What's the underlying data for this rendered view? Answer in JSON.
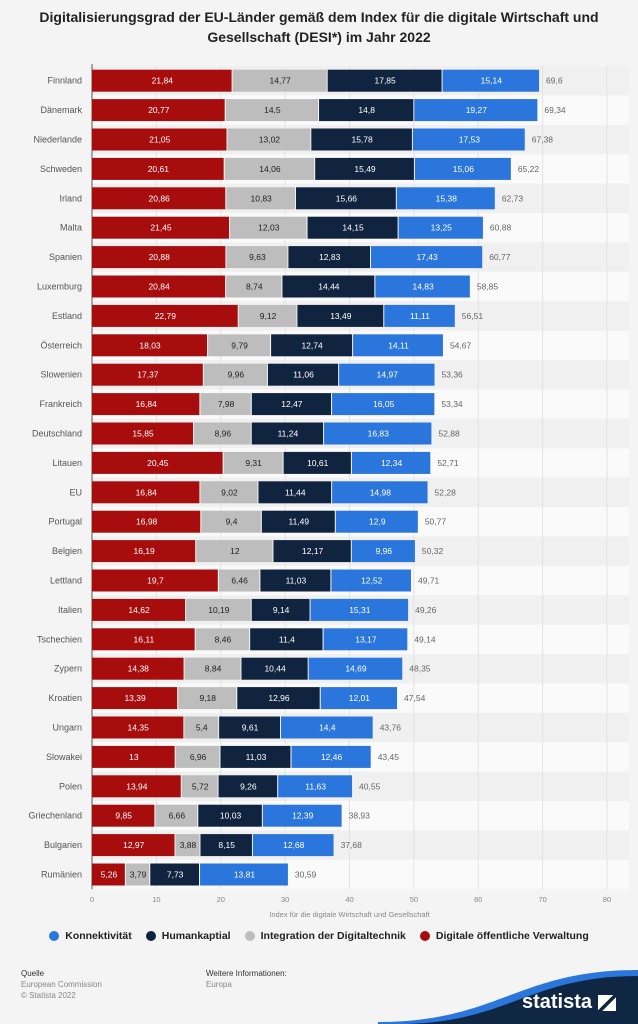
{
  "chart_data": {
    "type": "bar",
    "orientation": "horizontal",
    "stacked": true,
    "title": "Digitalisierungsgrad der EU-Länder gemäß dem Index für die digitale Wirtschaft und Gesellschaft (DESI*) im Jahr 2022",
    "xlabel": "Index für die digitale Wirtschaft und Gesellschaft",
    "ylabel": "",
    "xlim": [
      0,
      80
    ],
    "xticks": [
      "0",
      "10",
      "20",
      "30",
      "40",
      "50",
      "60",
      "70",
      "80"
    ],
    "grid": true,
    "legend_position": "bottom",
    "categories": [
      "Finnland",
      "Dänemark",
      "Niederlande",
      "Schweden",
      "Irland",
      "Malta",
      "Spanien",
      "Luxemburg",
      "Estland",
      "Österreich",
      "Slowenien",
      "Frankreich",
      "Deutschland",
      "Litauen",
      "EU",
      "Portugal",
      "Belgien",
      "Lettland",
      "Italien",
      "Tschechien",
      "Zypern",
      "Kroatien",
      "Ungarn",
      "Slowakei",
      "Polen",
      "Griechenland",
      "Bulgarien",
      "Rumänien"
    ],
    "series": [
      {
        "name": "Digitale öffentliche Verwaltung",
        "color": "#a80d0d",
        "label_color": "#ffffff",
        "values": [
          21.84,
          20.77,
          21.05,
          20.61,
          20.86,
          21.45,
          20.88,
          20.84,
          22.79,
          18.03,
          17.37,
          16.84,
          15.85,
          20.45,
          16.84,
          16.98,
          16.19,
          19.7,
          14.62,
          16.11,
          14.38,
          13.39,
          14.35,
          13,
          13.94,
          9.85,
          12.97,
          5.26
        ]
      },
      {
        "name": "Integration der Digitaltechnik",
        "color": "#bdbdbd",
        "label_color": "#222222",
        "values": [
          14.77,
          14.5,
          13.02,
          14.06,
          10.83,
          12.03,
          9.63,
          8.74,
          9.12,
          9.79,
          9.96,
          7.98,
          8.96,
          9.31,
          9.02,
          9.4,
          12,
          6.46,
          10.19,
          8.46,
          8.84,
          9.18,
          5.4,
          6.96,
          5.72,
          6.66,
          3.88,
          3.79
        ]
      },
      {
        "name": "Humankaptial",
        "color": "#10243f",
        "label_color": "#ffffff",
        "values": [
          17.85,
          14.8,
          15.78,
          15.49,
          15.66,
          14.15,
          12.83,
          14.44,
          13.49,
          12.74,
          11.06,
          12.47,
          11.24,
          10.61,
          11.44,
          11.49,
          12.17,
          11.03,
          9.14,
          11.4,
          10.44,
          12.96,
          9.61,
          11.03,
          9.26,
          10.03,
          8.15,
          7.73
        ]
      },
      {
        "name": "Konnektivität",
        "color": "#2a76dd",
        "label_color": "#ffffff",
        "values": [
          15.14,
          19.27,
          17.53,
          15.06,
          15.38,
          13.25,
          17.43,
          14.83,
          11.11,
          14.11,
          14.97,
          16.05,
          16.83,
          12.34,
          14.98,
          12.9,
          9.96,
          12.52,
          15.31,
          13.17,
          14.69,
          12.01,
          14.4,
          12.46,
          11.63,
          12.39,
          12.68,
          13.81
        ]
      }
    ],
    "data_labels": [
      "21,84|14,77|17,85|15,14",
      "20,77|14,5|14,8|19,27",
      "21,05|13,02|15,78|17,53",
      "20,61|14,06|15,49|15,06",
      "20,86|10,83|15,66|15,38",
      "21,45|12,03|14,15|13,25",
      "20,88|9,63|12,83|17,43",
      "20,84|8,74|14,44|14,83",
      "22,79|9,12|13,49|11,11",
      "18,03|9,79|12,74|14,11",
      "17,37|9,96|11,06|14,97",
      "16,84|7,98|12,47|16,05",
      "15,85|8,96|11,24|16,83",
      "20,45|9,31|10,61|12,34",
      "16,84|9,02|11,44|14,98",
      "16,98|9,4|11,49|12,9",
      "16,19|12|12,17|9,96",
      "19,7|6,46|11,03|12,52",
      "14,62|10,19|9,14|15,31",
      "16,11|8,46|11,4|13,17",
      "14,38|8,84|10,44|14,69",
      "13,39|9,18|12,96|12,01",
      "14,35|5,4|9,61|14,4",
      "13|6,96|11,03|12,46",
      "13,94|5,72|9,26|11,63",
      "9,85|6,66|10,03|12,39",
      "12,97|3,88|8,15|12,68",
      "5,26|3,79|7,73|13,81"
    ],
    "totals": [
      "69,6",
      "69,34",
      "67,38",
      "65,22",
      "62,73",
      "60,88",
      "60,77",
      "58,85",
      "56,51",
      "54,67",
      "53,36",
      "53,34",
      "52,88",
      "52,71",
      "52,28",
      "50,77",
      "50,32",
      "49,71",
      "49,26",
      "49,14",
      "48,35",
      "47,54",
      "43,76",
      "43,45",
      "40,55",
      "38,93",
      "37,68",
      "30,59"
    ]
  },
  "legend": [
    {
      "label": "Konnektivität",
      "color": "#2a76dd"
    },
    {
      "label": "Humankaptial",
      "color": "#10243f"
    },
    {
      "label": "Integration der Digitaltechnik",
      "color": "#bdbdbd"
    },
    {
      "label": "Digitale öffentliche Verwaltung",
      "color": "#a80d0d"
    }
  ],
  "footer": {
    "source_heading": "Quelle",
    "source": "European Commission",
    "copyright": "© Statista 2022",
    "more_heading": "Weitere Informationen:",
    "more": "Europa"
  },
  "brand": {
    "name": "statista",
    "color": "#0f2743",
    "accent": "#2a76dd"
  }
}
